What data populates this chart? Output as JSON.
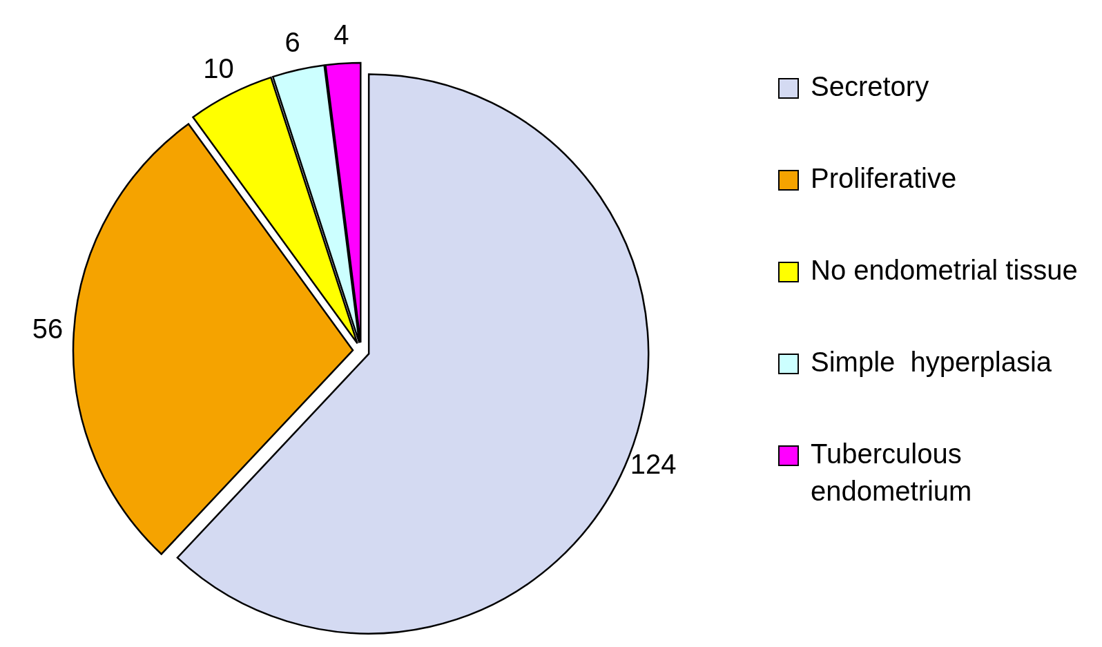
{
  "chart_data": {
    "type": "pie",
    "categories": [
      "Secretory",
      "Proliferative",
      "No endometrial tissue",
      "Simple  hyperplasia",
      "Tuberculous endometrium"
    ],
    "values": [
      124,
      56,
      10,
      6,
      4
    ],
    "colors": [
      "#d4daf2",
      "#f5a300",
      "#ffff00",
      "#ccffff",
      "#ff00ff"
    ],
    "data_labels": true,
    "legend": "right"
  }
}
